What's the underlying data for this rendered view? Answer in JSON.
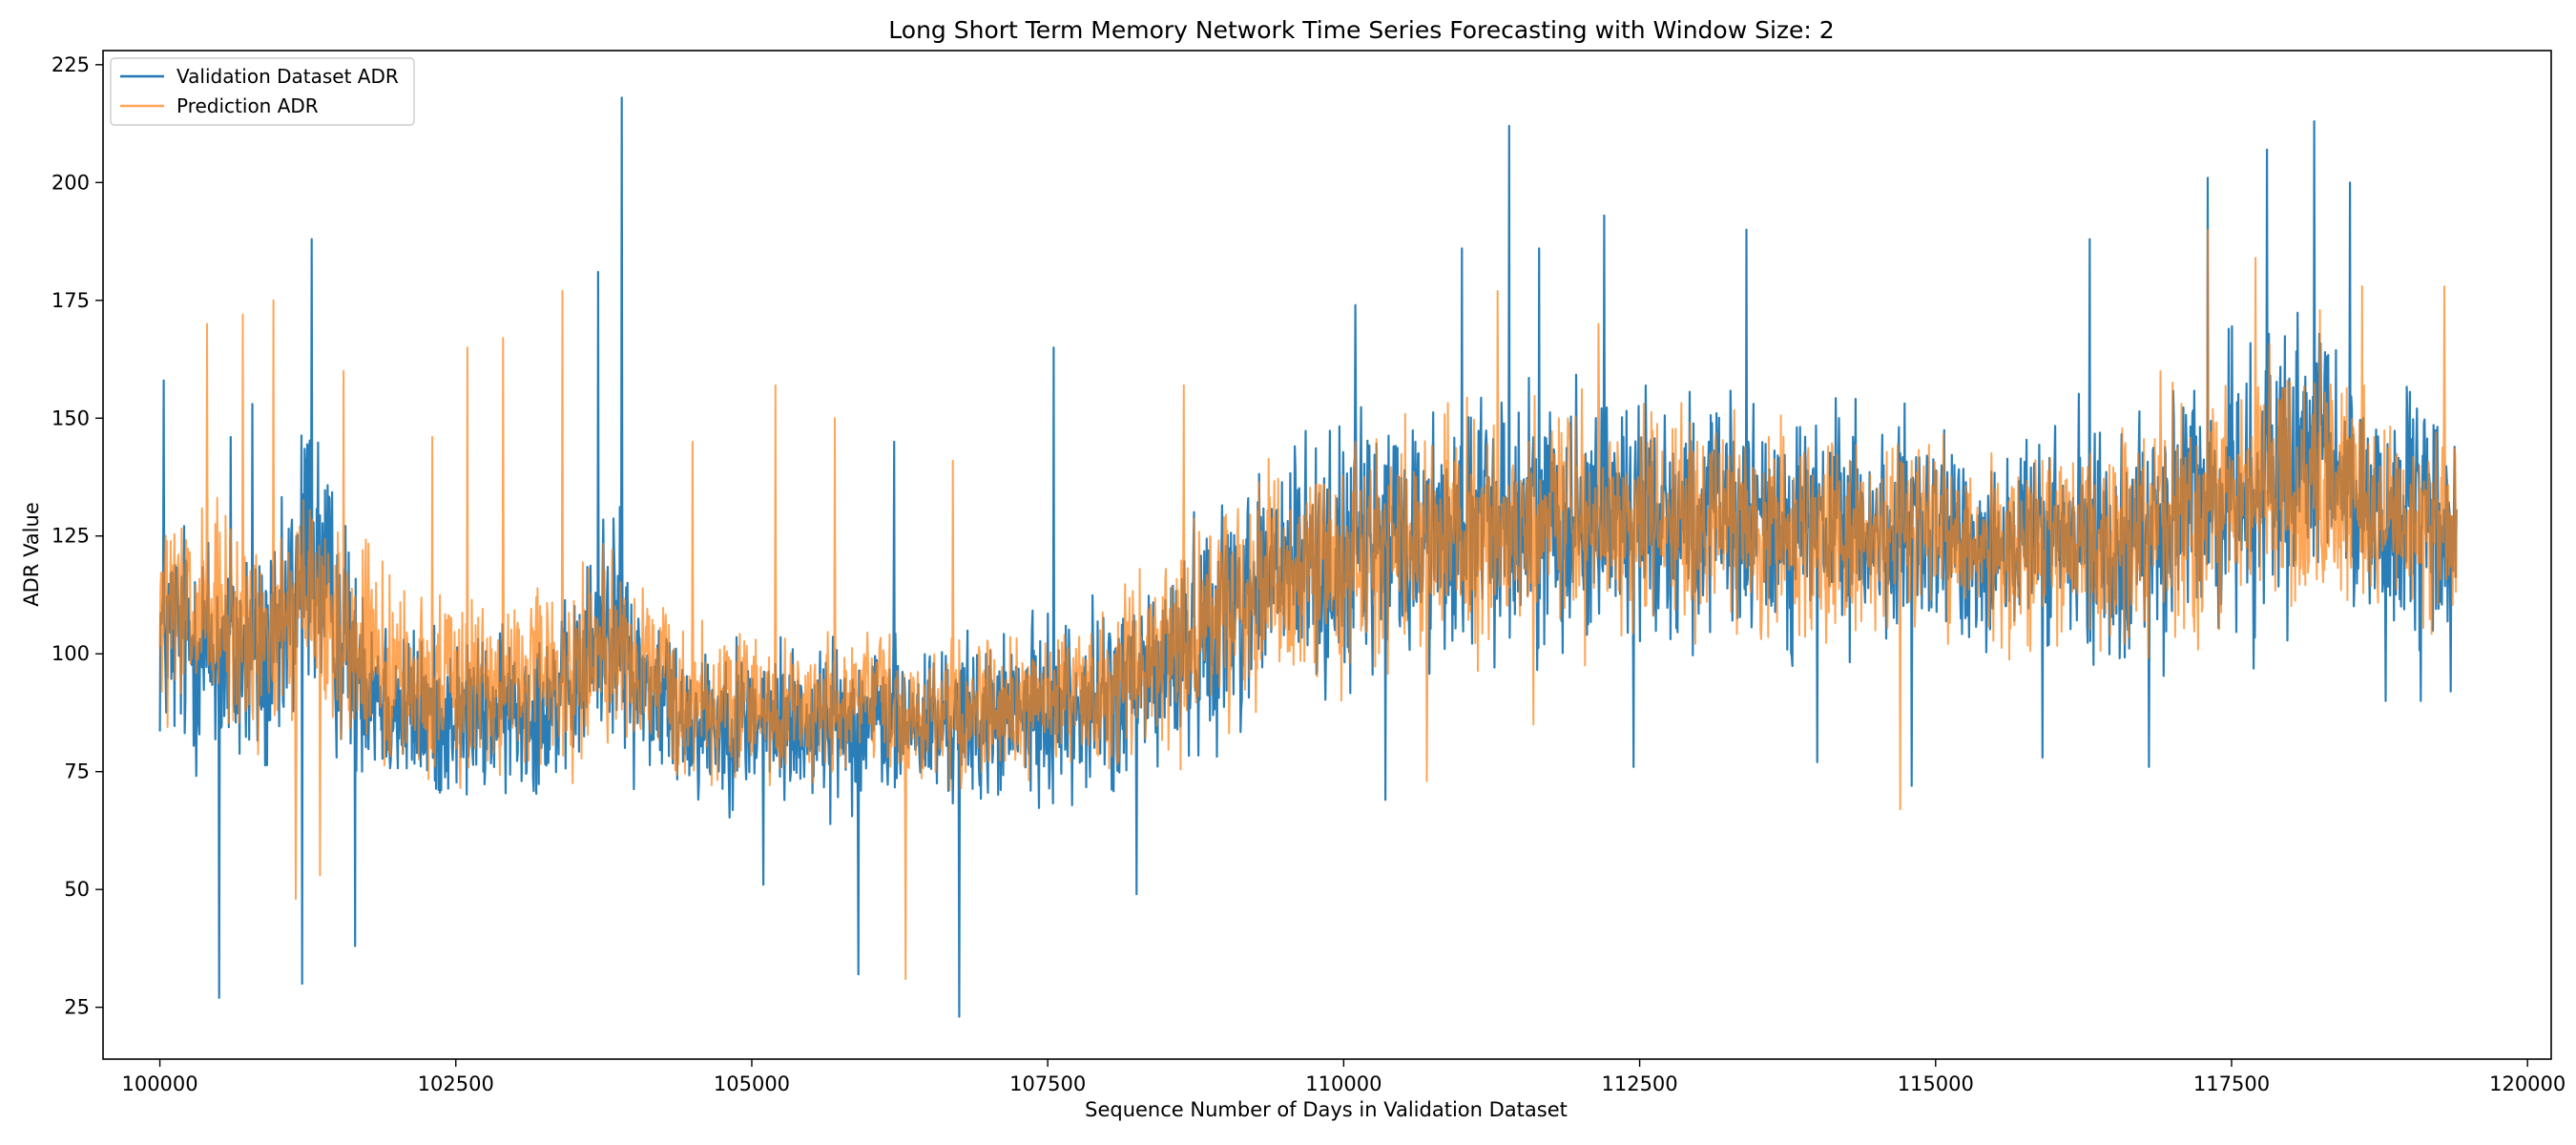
{
  "chart_data": {
    "type": "line",
    "title": "Long Short Term Memory Network Time Series Forecasting with Window Size: 2",
    "xlabel": "Sequence Number of Days in Validation Dataset",
    "ylabel": "ADR Value",
    "xlim": [
      99520,
      120200
    ],
    "ylim": [
      14,
      228
    ],
    "xticks": [
      100000,
      102500,
      105000,
      107500,
      110000,
      112500,
      115000,
      117500,
      120000
    ],
    "yticks": [
      25,
      50,
      75,
      100,
      125,
      150,
      175,
      200,
      225
    ],
    "grid": false,
    "legend": "upper-left",
    "x_start": 100000,
    "x_end": 119400,
    "series": [
      {
        "name": "Validation Dataset ADR",
        "color": "#1f77b4",
        "x": [
          100000,
          100500,
          101000,
          101250,
          101500,
          102000,
          102500,
          103000,
          103500,
          103800,
          104000,
          104500,
          105000,
          105500,
          106000,
          106500,
          107000,
          107500,
          108000,
          108500,
          109000,
          109500,
          110000,
          110500,
          111000,
          111500,
          112000,
          112500,
          113000,
          113500,
          114000,
          114500,
          115000,
          115500,
          116000,
          116500,
          117000,
          117500,
          118000,
          118300,
          118600,
          119000,
          119400
        ],
        "values": [
          105,
          100,
          98,
          125,
          105,
          88,
          86,
          88,
          92,
          110,
          95,
          86,
          86,
          85,
          86,
          85,
          86,
          88,
          90,
          97,
          110,
          118,
          120,
          125,
          126,
          128,
          130,
          130,
          128,
          127,
          127,
          126,
          124,
          124,
          123,
          124,
          128,
          135,
          138,
          140,
          132,
          128,
          126
        ],
        "band": [
          35,
          38,
          36,
          48,
          38,
          26,
          24,
          24,
          26,
          38,
          28,
          24,
          24,
          24,
          24,
          24,
          24,
          26,
          28,
          30,
          36,
          38,
          38,
          38,
          38,
          38,
          38,
          36,
          36,
          36,
          36,
          34,
          32,
          32,
          32,
          34,
          38,
          42,
          42,
          44,
          38,
          36,
          36
        ],
        "spikes": [
          [
            100030,
            158
          ],
          [
            100500,
            27
          ],
          [
            100600,
            146
          ],
          [
            100780,
            153
          ],
          [
            101200,
            30
          ],
          [
            101280,
            188
          ],
          [
            101650,
            38
          ],
          [
            103700,
            181
          ],
          [
            103900,
            218
          ],
          [
            105100,
            51
          ],
          [
            105900,
            32
          ],
          [
            106200,
            145
          ],
          [
            106750,
            23
          ],
          [
            107550,
            165
          ],
          [
            108250,
            49
          ],
          [
            110100,
            174
          ],
          [
            110350,
            69
          ],
          [
            111000,
            186
          ],
          [
            111400,
            212
          ],
          [
            111650,
            186
          ],
          [
            112200,
            193
          ],
          [
            112450,
            76
          ],
          [
            113400,
            190
          ],
          [
            114000,
            77
          ],
          [
            114800,
            72
          ],
          [
            115900,
            78
          ],
          [
            116300,
            188
          ],
          [
            116800,
            76
          ],
          [
            117300,
            201
          ],
          [
            117800,
            207
          ],
          [
            118200,
            213
          ],
          [
            118500,
            200
          ],
          [
            118800,
            90
          ],
          [
            119100,
            90
          ],
          [
            119350,
            92
          ]
        ]
      },
      {
        "name": "Prediction ADR",
        "color": "#ff7f0e",
        "x": [
          100000,
          100500,
          101000,
          101250,
          101500,
          102000,
          102500,
          103000,
          103500,
          103800,
          104000,
          104500,
          105000,
          105500,
          106000,
          106500,
          107000,
          107500,
          108000,
          108500,
          109000,
          109500,
          110000,
          110500,
          111000,
          111500,
          112000,
          112500,
          113000,
          113500,
          114000,
          114500,
          115000,
          115500,
          116000,
          116500,
          117000,
          117500,
          118000,
          118300,
          118600,
          119000,
          119400
        ],
        "values": [
          108,
          106,
          102,
          112,
          104,
          95,
          93,
          94,
          96,
          104,
          97,
          90,
          89,
          88,
          89,
          88,
          89,
          90,
          93,
          99,
          110,
          117,
          119,
          124,
          125,
          127,
          129,
          129,
          128,
          127,
          126,
          125,
          124,
          123,
          123,
          124,
          127,
          133,
          136,
          137,
          131,
          128,
          126
        ],
        "band": [
          30,
          34,
          32,
          34,
          32,
          26,
          26,
          26,
          26,
          30,
          26,
          22,
          22,
          22,
          22,
          22,
          22,
          22,
          24,
          28,
          32,
          34,
          34,
          34,
          34,
          34,
          34,
          32,
          32,
          32,
          32,
          30,
          28,
          28,
          28,
          30,
          34,
          36,
          36,
          38,
          34,
          32,
          32
        ],
        "spikes": [
          [
            100400,
            170
          ],
          [
            100700,
            172
          ],
          [
            100960,
            175
          ],
          [
            101150,
            48
          ],
          [
            101350,
            53
          ],
          [
            101550,
            160
          ],
          [
            102300,
            146
          ],
          [
            102600,
            165
          ],
          [
            102900,
            167
          ],
          [
            103400,
            177
          ],
          [
            104500,
            145
          ],
          [
            105200,
            157
          ],
          [
            105700,
            150
          ],
          [
            106300,
            31
          ],
          [
            106700,
            141
          ],
          [
            108650,
            157
          ],
          [
            110100,
            145
          ],
          [
            110700,
            73
          ],
          [
            111300,
            177
          ],
          [
            111600,
            85
          ],
          [
            112150,
            170
          ],
          [
            114700,
            67
          ],
          [
            116900,
            160
          ],
          [
            117300,
            190
          ],
          [
            117700,
            184
          ],
          [
            118600,
            178
          ],
          [
            119300,
            178
          ]
        ]
      }
    ]
  }
}
